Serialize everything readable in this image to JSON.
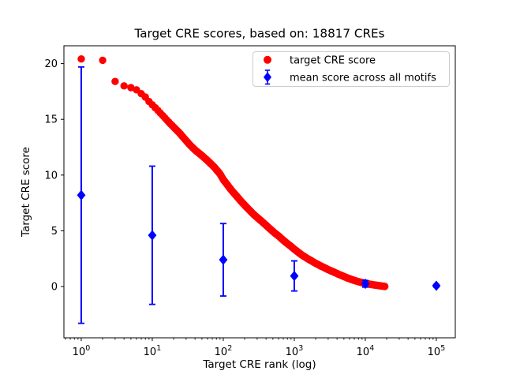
{
  "title": "Target CRE scores, based on: 18817 CREs",
  "axes": {
    "xlabel": "Target CRE rank (log)",
    "ylabel": "Target CRE score",
    "x_scale": "log",
    "x_major_tick_exponents": [
      0,
      1,
      2,
      3,
      4,
      5
    ],
    "x_tick_labels": [
      "10^0",
      "10^1",
      "10^2",
      "10^3",
      "10^4",
      "10^5"
    ],
    "y_ticks": [
      0,
      5,
      10,
      15,
      20
    ],
    "xlim": [
      0.57,
      185000
    ],
    "ylim": [
      -4.6,
      21.6
    ],
    "grid": false
  },
  "legend": {
    "position": "upper right",
    "items": [
      {
        "label": "target CRE score",
        "marker": "circle",
        "color": "#ff0000"
      },
      {
        "label": "mean score across all motifs",
        "marker": "diamond",
        "color": "#0000ff"
      }
    ]
  },
  "chart_data": {
    "type": "scatter",
    "title": "Target CRE scores, based on: 18817 CREs",
    "xlabel": "Target CRE rank (log)",
    "ylabel": "Target CRE score",
    "x_scale": "log",
    "xlim": [
      0.57,
      185000
    ],
    "ylim": [
      -4.6,
      21.6
    ],
    "n_cres": 18817,
    "series": [
      {
        "name": "target CRE score",
        "type": "scatter",
        "color": "#ff0000",
        "marker": "circle",
        "marker_radius_px": 4.7,
        "note": "18817 CRE scores sorted descending vs rank; anchor points [rank, score] read from plot, intermediate ranks interpolated log-linearly",
        "anchors": [
          [
            1,
            20.42
          ],
          [
            2,
            20.3
          ],
          [
            3,
            18.4
          ],
          [
            4,
            18.0
          ],
          [
            5,
            17.85
          ],
          [
            6,
            17.65
          ],
          [
            7,
            17.3
          ],
          [
            8,
            17.0
          ],
          [
            9,
            16.6
          ],
          [
            10,
            16.3
          ],
          [
            12,
            15.8
          ],
          [
            14,
            15.35
          ],
          [
            16,
            14.95
          ],
          [
            18,
            14.6
          ],
          [
            20,
            14.3
          ],
          [
            24,
            13.8
          ],
          [
            28,
            13.3
          ],
          [
            34,
            12.7
          ],
          [
            40,
            12.25
          ],
          [
            50,
            11.75
          ],
          [
            60,
            11.3
          ],
          [
            75,
            10.7
          ],
          [
            90,
            10.1
          ],
          [
            100,
            9.6
          ],
          [
            115,
            9.1
          ],
          [
            130,
            8.65
          ],
          [
            150,
            8.2
          ],
          [
            175,
            7.7
          ],
          [
            200,
            7.3
          ],
          [
            230,
            6.9
          ],
          [
            265,
            6.5
          ],
          [
            300,
            6.2
          ],
          [
            340,
            5.9
          ],
          [
            400,
            5.5
          ],
          [
            460,
            5.15
          ],
          [
            530,
            4.8
          ],
          [
            610,
            4.5
          ],
          [
            700,
            4.15
          ],
          [
            800,
            3.85
          ],
          [
            900,
            3.6
          ],
          [
            1000,
            3.35
          ],
          [
            1150,
            3.05
          ],
          [
            1300,
            2.8
          ],
          [
            1500,
            2.55
          ],
          [
            1750,
            2.3
          ],
          [
            2000,
            2.08
          ],
          [
            2300,
            1.88
          ],
          [
            2600,
            1.72
          ],
          [
            3000,
            1.52
          ],
          [
            3400,
            1.37
          ],
          [
            3900,
            1.2
          ],
          [
            4400,
            1.05
          ],
          [
            5000,
            0.9
          ],
          [
            5700,
            0.75
          ],
          [
            6500,
            0.62
          ],
          [
            7400,
            0.5
          ],
          [
            8400,
            0.4
          ],
          [
            9500,
            0.32
          ],
          [
            10700,
            0.25
          ],
          [
            12000,
            0.19
          ],
          [
            13500,
            0.14
          ],
          [
            15000,
            0.1
          ],
          [
            16500,
            0.06
          ],
          [
            18000,
            0.03
          ],
          [
            18817,
            0.01
          ]
        ]
      },
      {
        "name": "mean score across all motifs",
        "type": "errorbar",
        "color": "#0000ff",
        "marker": "diamond",
        "x": [
          1,
          10,
          100,
          1000,
          10000,
          100000
        ],
        "y": [
          8.2,
          4.6,
          2.4,
          0.95,
          0.25,
          0.07
        ],
        "yerr": [
          11.5,
          6.2,
          3.25,
          1.35,
          0.3,
          0.12
        ]
      }
    ]
  }
}
